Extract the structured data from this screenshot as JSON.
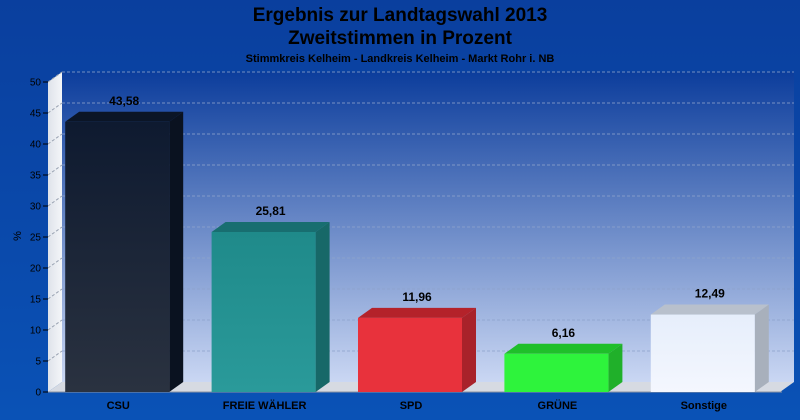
{
  "title": {
    "line1": "Ergebnis zur Landtagswahl 2013",
    "line2": "Zweitstimmen in Prozent",
    "subtitle": "Stimmkreis Kelheim - Landkreis Kelheim - Markt Rohr i. NB"
  },
  "chart_data": {
    "type": "bar",
    "title": "Ergebnis zur Landtagswahl 2013 Zweitstimmen in Prozent",
    "subtitle": "Stimmkreis Kelheim - Landkreis Kelheim - Markt Rohr i. NB",
    "xlabel": "",
    "ylabel": "%",
    "ylim": [
      0,
      50
    ],
    "yticks": [
      0,
      5,
      10,
      15,
      20,
      25,
      30,
      35,
      40,
      45,
      50
    ],
    "grid": true,
    "categories": [
      "CSU",
      "FREIE WÄHLER",
      "SPD",
      "GRÜNE",
      "Sonstige"
    ],
    "values": [
      43.58,
      25.81,
      11.96,
      6.16,
      12.49
    ],
    "value_labels": [
      "43,58",
      "25,81",
      "11,96",
      "6,16",
      "12,49"
    ],
    "colors": [
      {
        "front_top": "#0e1a30",
        "front_bottom": "#2a3240",
        "top": "#0b1526",
        "side": "#0a1220"
      },
      {
        "front_top": "#1f8a8a",
        "front_bottom": "#2a9a9a",
        "top": "#186e70",
        "side": "#176868"
      },
      {
        "front_top": "#e8323c",
        "front_bottom": "#e8323c",
        "top": "#b4222a",
        "side": "#a8222a"
      },
      {
        "front_top": "#2ef33c",
        "front_bottom": "#2ef33c",
        "top": "#1fbf2a",
        "side": "#20b02a"
      },
      {
        "front_top": "#e6eefb",
        "front_bottom": "#f4f7fe",
        "top": "#b8c0cc",
        "side": "#a8b0bc"
      }
    ]
  }
}
